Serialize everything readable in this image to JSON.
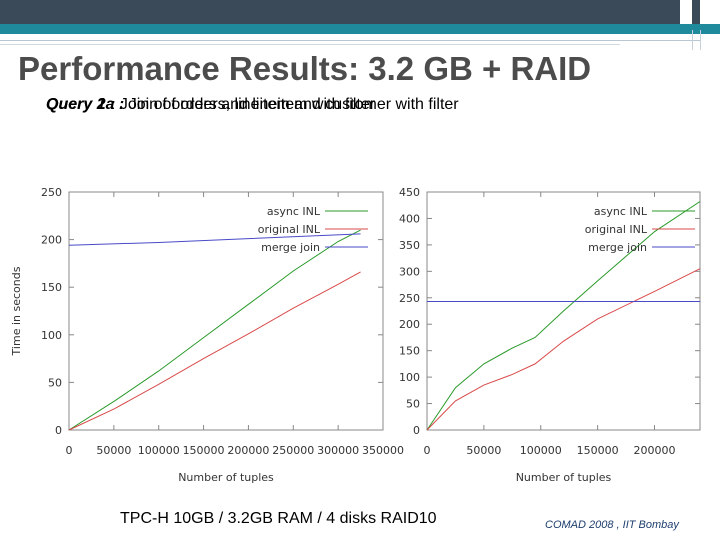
{
  "slide": {
    "title": "Performance Results: 3.2 GB + RAID",
    "subtitles": [
      {
        "prefix": "Query 1 : ",
        "text": "Join of orders and lineitem with filter"
      },
      {
        "prefix": "Query 2a : ",
        "text": "Join of orders, lineitem and customer with filter"
      }
    ],
    "caption": "TPC-H 10GB / 3.2GB RAM / 4 disks RAID10",
    "footer": "COMAD 2008 , IIT Bombay"
  },
  "chart_data": [
    {
      "type": "line",
      "xlabel": "Number of tuples",
      "ylabel": "Time in seconds",
      "xlim": [
        0,
        350000
      ],
      "ylim": [
        0,
        250
      ],
      "xticks": [
        0,
        50000,
        100000,
        150000,
        200000,
        250000,
        300000,
        350000
      ],
      "yticks": [
        0,
        50,
        100,
        150,
        200,
        250
      ],
      "legend_position": "top-right",
      "series": [
        {
          "name": "async INL",
          "color": "#2a9a2a",
          "x": [
            0,
            50000,
            100000,
            150000,
            200000,
            250000,
            300000,
            325000
          ],
          "y": [
            0,
            30,
            62,
            97,
            132,
            167,
            198,
            210
          ]
        },
        {
          "name": "original INL",
          "color": "#d94a4a",
          "x": [
            0,
            50000,
            100000,
            150000,
            200000,
            250000,
            300000,
            325000
          ],
          "y": [
            0,
            22,
            48,
            75,
            101,
            128,
            153,
            166
          ]
        },
        {
          "name": "merge join",
          "color": "#4a4ac8",
          "x": [
            0,
            100000,
            200000,
            325000
          ],
          "y": [
            194,
            197,
            201,
            206
          ]
        }
      ]
    },
    {
      "type": "line",
      "xlabel": "Number of tuples",
      "ylabel": "",
      "xlim": [
        0,
        240000
      ],
      "ylim": [
        0,
        450
      ],
      "xticks": [
        0,
        50000,
        100000,
        150000,
        200000
      ],
      "yticks": [
        0,
        50,
        100,
        150,
        200,
        250,
        300,
        350,
        400,
        450
      ],
      "legend_position": "top-right",
      "series": [
        {
          "name": "async INL",
          "color": "#2a9a2a",
          "x": [
            0,
            25000,
            50000,
            75000,
            95000,
            120000,
            150000,
            200000,
            240000
          ],
          "y": [
            0,
            80,
            125,
            155,
            175,
            225,
            282,
            375,
            432
          ]
        },
        {
          "name": "original INL",
          "color": "#d94a4a",
          "x": [
            0,
            25000,
            50000,
            75000,
            95000,
            120000,
            150000,
            200000,
            240000
          ],
          "y": [
            0,
            55,
            85,
            105,
            125,
            168,
            210,
            262,
            305
          ]
        },
        {
          "name": "merge join",
          "color": "#4a4ac8",
          "x": [
            0,
            240000
          ],
          "y": [
            243,
            243
          ]
        }
      ]
    }
  ]
}
